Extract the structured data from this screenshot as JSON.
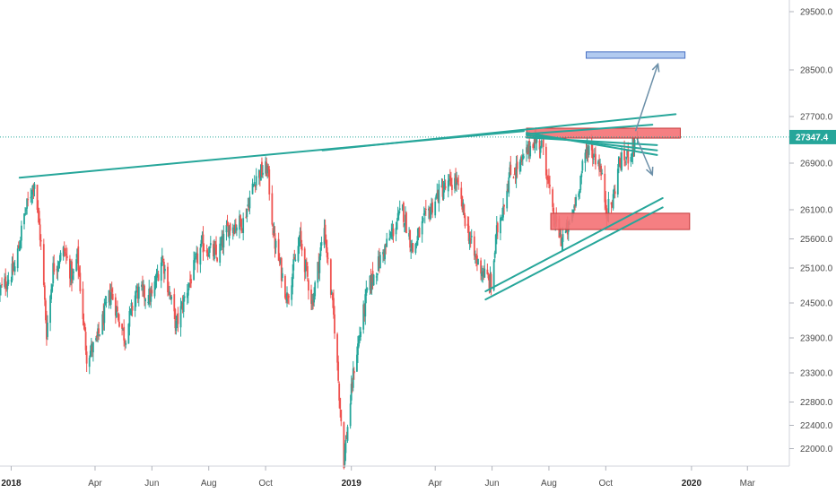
{
  "chart_data": {
    "type": "candlestick",
    "instrument_note": "",
    "ylim": [
      21700,
      29700
    ],
    "y_ticks": [
      22000,
      22400,
      22800,
      23300,
      23900,
      24500,
      25100,
      25600,
      26100,
      26900,
      27700,
      28500,
      29500
    ],
    "y_tick_labels": [
      "22000.0",
      "22400.0",
      "22800.0",
      "23300.0",
      "23900.0",
      "24500.0",
      "25100.0",
      "25600.0",
      "26100.0",
      "26900.0",
      "27700.0",
      "28500.0",
      "29500.0"
    ],
    "x_range": [
      "2017-12-20",
      "2020-04-15"
    ],
    "x_ticks": [
      {
        "date": "2018-01-01",
        "label": "2018",
        "bold": true
      },
      {
        "date": "2018-04-01",
        "label": "Apr",
        "bold": false
      },
      {
        "date": "2018-06-01",
        "label": "Jun",
        "bold": false
      },
      {
        "date": "2018-08-01",
        "label": "Aug",
        "bold": false
      },
      {
        "date": "2018-10-01",
        "label": "Oct",
        "bold": false
      },
      {
        "date": "2019-01-01",
        "label": "2019",
        "bold": true
      },
      {
        "date": "2019-04-01",
        "label": "Apr",
        "bold": false
      },
      {
        "date": "2019-06-01",
        "label": "Jun",
        "bold": false
      },
      {
        "date": "2019-08-01",
        "label": "Aug",
        "bold": false
      },
      {
        "date": "2019-10-01",
        "label": "Oct",
        "bold": false
      },
      {
        "date": "2020-01-01",
        "label": "2020",
        "bold": true
      },
      {
        "date": "2020-03-01",
        "label": "Mar",
        "bold": false
      }
    ],
    "last_price": 27347.4,
    "last_price_label": "27347.4",
    "price_path": [
      [
        "2017-12-20",
        24700
      ],
      [
        "2018-01-05",
        25100
      ],
      [
        "2018-01-15",
        26000
      ],
      [
        "2018-01-26",
        26600
      ],
      [
        "2018-02-02",
        25500
      ],
      [
        "2018-02-08",
        24000
      ],
      [
        "2018-02-15",
        25100
      ],
      [
        "2018-02-27",
        25400
      ],
      [
        "2018-03-08",
        24900
      ],
      [
        "2018-03-13",
        25300
      ],
      [
        "2018-03-23",
        23600
      ],
      [
        "2018-04-02",
        23800
      ],
      [
        "2018-04-18",
        24700
      ],
      [
        "2018-05-03",
        23900
      ],
      [
        "2018-05-15",
        24700
      ],
      [
        "2018-06-01",
        24600
      ],
      [
        "2018-06-12",
        25300
      ],
      [
        "2018-06-27",
        24100
      ],
      [
        "2018-07-10",
        24800
      ],
      [
        "2018-07-25",
        25500
      ],
      [
        "2018-08-10",
        25300
      ],
      [
        "2018-08-22",
        25800
      ],
      [
        "2018-09-07",
        25900
      ],
      [
        "2018-09-21",
        26700
      ],
      [
        "2018-10-03",
        26800
      ],
      [
        "2018-10-10",
        25600
      ],
      [
        "2018-10-24",
        24600
      ],
      [
        "2018-11-07",
        25600
      ],
      [
        "2018-11-20",
        24500
      ],
      [
        "2018-12-03",
        25800
      ],
      [
        "2018-12-14",
        24100
      ],
      [
        "2018-12-24",
        21800
      ],
      [
        "2019-01-04",
        23400
      ],
      [
        "2019-01-18",
        24700
      ],
      [
        "2019-02-05",
        25400
      ],
      [
        "2019-02-25",
        26100
      ],
      [
        "2019-03-08",
        25400
      ],
      [
        "2019-03-20",
        25900
      ],
      [
        "2019-04-05",
        26400
      ],
      [
        "2019-04-23",
        26600
      ],
      [
        "2019-05-13",
        25300
      ],
      [
        "2019-05-31",
        24800
      ],
      [
        "2019-06-06",
        25700
      ],
      [
        "2019-06-20",
        26700
      ],
      [
        "2019-07-03",
        26900
      ],
      [
        "2019-07-15",
        27300
      ],
      [
        "2019-07-26",
        27200
      ],
      [
        "2019-08-05",
        26000
      ],
      [
        "2019-08-14",
        25600
      ],
      [
        "2019-08-23",
        25800
      ],
      [
        "2019-09-06",
        26800
      ],
      [
        "2019-09-12",
        27200
      ],
      [
        "2019-09-24",
        26900
      ],
      [
        "2019-10-02",
        26100
      ],
      [
        "2019-10-08",
        26200
      ],
      [
        "2019-10-15",
        26900
      ],
      [
        "2019-10-24",
        27000
      ],
      [
        "2019-11-04",
        27347.4
      ]
    ],
    "drawings": {
      "lines": [
        {
          "x1": "2018-01-10",
          "y1": 26650,
          "x2": "2019-07-05",
          "y2": 27450
        },
        {
          "x1": "2018-12-01",
          "y1": 27120,
          "x2": "2019-12-15",
          "y2": 27740
        },
        {
          "x1": "2019-07-08",
          "y1": 27400,
          "x2": "2019-11-20",
          "y2": 27560
        },
        {
          "x1": "2019-07-08",
          "y1": 27420,
          "x2": "2019-11-25",
          "y2": 27040
        },
        {
          "x1": "2019-07-08",
          "y1": 27380,
          "x2": "2019-11-25",
          "y2": 27120
        },
        {
          "x1": "2019-07-08",
          "y1": 27340,
          "x2": "2019-11-25",
          "y2": 27210
        },
        {
          "x1": "2019-05-25",
          "y1": 24700,
          "x2": "2019-12-01",
          "y2": 26300
        },
        {
          "x1": "2019-05-25",
          "y1": 24560,
          "x2": "2019-12-01",
          "y2": 26140
        }
      ],
      "rects": [
        {
          "x1": "2019-07-08",
          "y1": 27500,
          "x2": "2019-12-20",
          "y2": 27330,
          "fill": "#f47174",
          "stroke": "#c43a3a"
        },
        {
          "x1": "2019-08-03",
          "y1": 26040,
          "x2": "2019-12-30",
          "y2": 25760,
          "fill": "#f47174",
          "stroke": "#c43a3a"
        },
        {
          "x1": "2019-09-10",
          "y1": 28810,
          "x2": "2019-12-25",
          "y2": 28700,
          "fill": "#a9c4ee",
          "stroke": "#4a72c4"
        }
      ],
      "arrows": [
        {
          "x1": "2019-11-02",
          "y1": 27450,
          "x2": "2019-11-26",
          "y2": 28600
        },
        {
          "x1": "2019-11-04",
          "y1": 27300,
          "x2": "2019-11-20",
          "y2": 26700
        }
      ]
    },
    "colors": {
      "up": "#26a69a",
      "down": "#ef5350",
      "line": "#26a69a",
      "price_label": "#26a69a",
      "dotted": "#26a69a"
    }
  }
}
